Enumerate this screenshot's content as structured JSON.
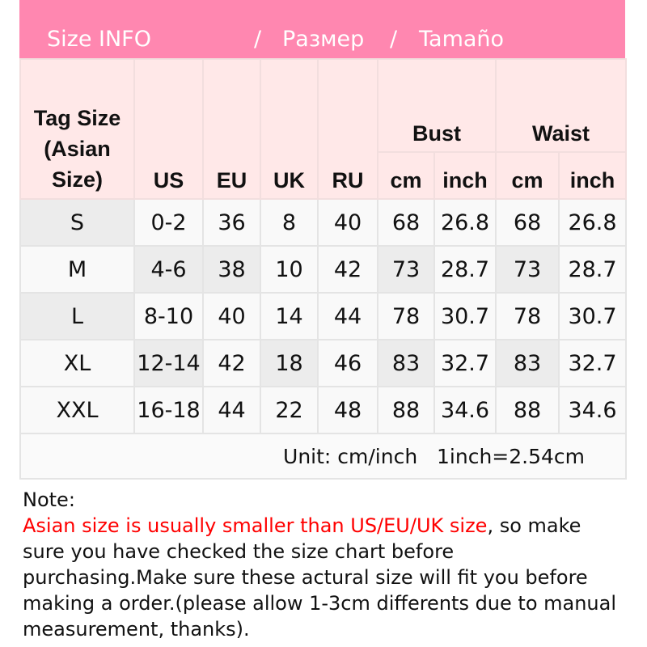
{
  "banner": {
    "en": "Size INFO",
    "sep1": "/",
    "ru": "Размер",
    "sep2": "/",
    "es": "Tamaño",
    "color": "#ff87b0"
  },
  "header": {
    "tag": "Tag Size (Asian Size)",
    "us": "US",
    "eu": "EU",
    "uk": "UK",
    "ru": "RU",
    "bust": "Bust",
    "waist": "Waist",
    "cm": "cm",
    "inch": "inch"
  },
  "rows": [
    [
      "S",
      "0-2",
      "36",
      "8",
      "40",
      "68",
      "26.8",
      "68",
      "26.8"
    ],
    [
      "M",
      "4-6",
      "38",
      "10",
      "42",
      "73",
      "28.7",
      "73",
      "28.7"
    ],
    [
      "L",
      "8-10",
      "40",
      "14",
      "44",
      "78",
      "30.7",
      "78",
      "30.7"
    ],
    [
      "XL",
      "12-14",
      "42",
      "18",
      "46",
      "83",
      "32.7",
      "83",
      "32.7"
    ],
    [
      "XXL",
      "16-18",
      "44",
      "22",
      "48",
      "88",
      "34.6",
      "88",
      "34.6"
    ]
  ],
  "unit": "Unit: cm/inch   1inch=2.54cm",
  "note": {
    "label": "Note:",
    "red": "Asian size is usually smaller than US/EU/UK size",
    "rest": ", so make sure you have checked the size chart before purchasing.Make sure these actural size will fit you before making a order.(please allow 1-3cm differents due to manual measurement, thanks).",
    "red_color": "#ff0000"
  }
}
